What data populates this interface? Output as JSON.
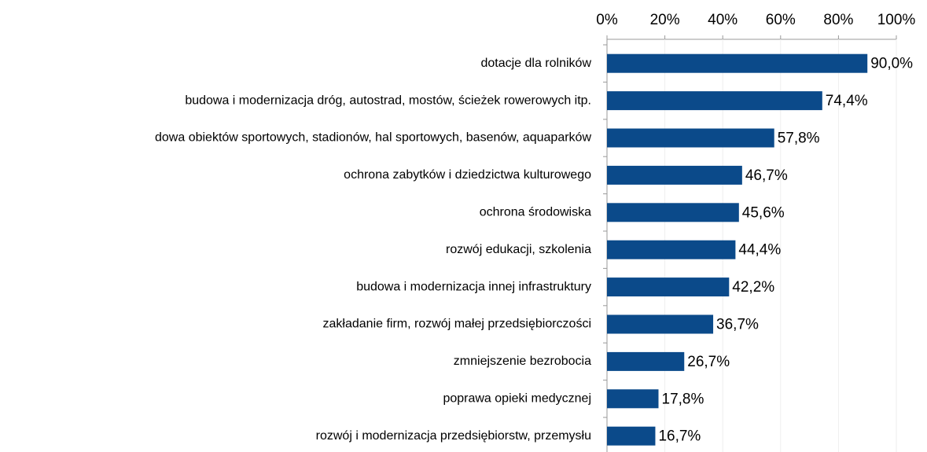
{
  "chart_data": {
    "type": "hbar",
    "categories": [
      "dotacje dla rolników",
      "budowa i modernizacja dróg, autostrad, mostów, ścieżek rowerowych itp.",
      "dowa obiektów sportowych, stadionów, hal sportowych, basenów, aquaparków",
      "ochrona zabytków i dziedzictwa kulturowego",
      "ochrona środowiska",
      "rozwój edukacji, szkolenia",
      "budowa i modernizacja innej infrastruktury",
      "zakładanie firm, rozwój małej przedsiębiorczości",
      "zmniejszenie bezrobocia",
      "poprawa opieki medycznej",
      "rozwój i  modernizacja przedsiębiorstw, przemysłu"
    ],
    "values": [
      90.0,
      74.4,
      57.8,
      46.7,
      45.6,
      44.4,
      42.2,
      36.7,
      26.7,
      17.8,
      16.7
    ],
    "value_labels": [
      "90,0%",
      "74,4%",
      "57,8%",
      "46,7%",
      "45,6%",
      "44,4%",
      "42,2%",
      "36,7%",
      "26,7%",
      "17,8%",
      "16,7%"
    ],
    "color": "#0b4a8a",
    "xlim": [
      0,
      100
    ],
    "xticks": [
      {
        "value": 0,
        "label": "0%"
      },
      {
        "value": 20,
        "label": "20%"
      },
      {
        "value": 40,
        "label": "40%"
      },
      {
        "value": 60,
        "label": "60%"
      },
      {
        "value": 80,
        "label": "80%"
      },
      {
        "value": 100,
        "label": "100%"
      }
    ],
    "grid": true
  }
}
